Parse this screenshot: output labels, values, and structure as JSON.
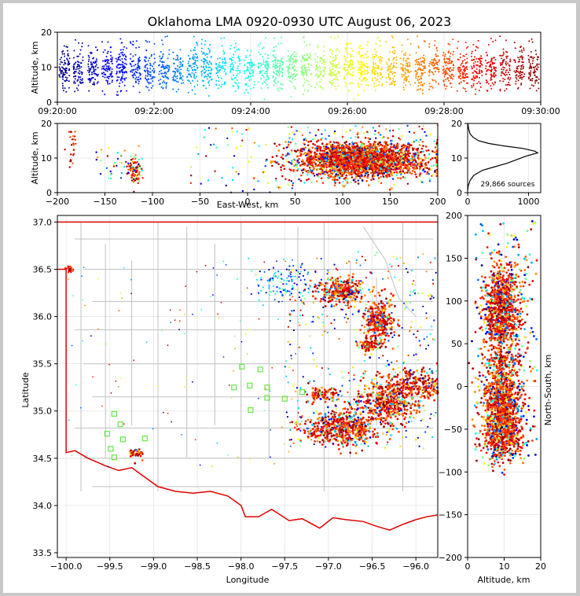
{
  "chart_data": [
    {
      "id": "time_height",
      "type": "scatter",
      "title": "Oklahoma LMA 0920-0930 UTC August 06, 2023",
      "xlabel": "",
      "ylabel": "Altitude, km",
      "xlim": [
        "09:20:00",
        "09:30:00"
      ],
      "ylim": [
        0,
        20
      ],
      "xticks": [
        "09:20:00",
        "09:22:00",
        "09:24:00",
        "09:26:00",
        "09:28:00",
        "09:30:00"
      ],
      "yticks": [
        "0",
        "10",
        "20"
      ],
      "color_mapping": "jet colormap by time 09:20:00 (blue) to 09:30:00 (dark red)",
      "altitude_band_km": [
        2,
        19
      ],
      "core_altitude_km": [
        5,
        14
      ]
    },
    {
      "id": "eastwest_altitude",
      "type": "scatter",
      "xlabel": "East-West, km",
      "ylabel": "Altitude, km",
      "xlim": [
        -200,
        200
      ],
      "ylim": [
        0,
        20
      ],
      "xticks": [
        "−200",
        "−150",
        "−100",
        "−50",
        "0",
        "50",
        "100",
        "150",
        "200"
      ],
      "yticks": [
        "0",
        "10",
        "20"
      ],
      "clusters": [
        {
          "x_range_km": [
            -190,
            -180
          ],
          "altitude_km": [
            5,
            19
          ]
        },
        {
          "x_range_km": [
            -125,
            -110
          ],
          "altitude_km": [
            3,
            12
          ]
        },
        {
          "x_range_km": [
            70,
            200
          ],
          "altitude_km": [
            4,
            19
          ],
          "core_x_km": [
            80,
            160
          ],
          "core_altitude_km": [
            6,
            14
          ]
        }
      ]
    },
    {
      "id": "altitude_histogram",
      "type": "line",
      "xlim": [
        0,
        1200
      ],
      "ylim": [
        0,
        20
      ],
      "xticks": [
        "0",
        "1000"
      ],
      "yticks": [
        "0",
        "10",
        "20"
      ],
      "annotation": "29,866 sources",
      "x": [
        0,
        10,
        40,
        100,
        250,
        450,
        650,
        800,
        950,
        1050,
        1150,
        1100,
        900,
        600,
        350,
        180,
        90,
        40,
        15,
        5
      ],
      "y": [
        0.5,
        2,
        3.5,
        5,
        6.5,
        7.5,
        8.5,
        9.5,
        10.5,
        11,
        11.5,
        12,
        12.8,
        13.5,
        14.2,
        15,
        16,
        17,
        18.5,
        20
      ]
    },
    {
      "id": "plan_view",
      "type": "scatter",
      "xlabel": "Longitude",
      "ylabel": "Latitude",
      "xlim": [
        -100.1,
        -95.75
      ],
      "ylim": [
        33.45,
        37.07
      ],
      "xticks": [
        "−100.0",
        "−99.5",
        "−99.0",
        "−98.5",
        "−98.0",
        "−97.5",
        "−97.0",
        "−96.5",
        "−96.0"
      ],
      "yticks": [
        "33.5",
        "34.0",
        "34.5",
        "35.0",
        "35.5",
        "36.0",
        "36.5",
        "37.0"
      ],
      "station_marker": "green open square",
      "stations": [
        [
          -99.45,
          34.97
        ],
        [
          -99.38,
          34.86
        ],
        [
          -99.53,
          34.76
        ],
        [
          -99.35,
          34.7
        ],
        [
          -99.49,
          34.6
        ],
        [
          -99.45,
          34.51
        ],
        [
          -99.1,
          34.71
        ],
        [
          -97.99,
          35.47
        ],
        [
          -97.78,
          35.44
        ],
        [
          -98.08,
          35.25
        ],
        [
          -97.9,
          35.27
        ],
        [
          -97.89,
          35.01
        ],
        [
          -97.7,
          35.14
        ],
        [
          -97.5,
          35.13
        ],
        [
          -97.7,
          35.25
        ],
        [
          -97.3,
          35.2
        ]
      ],
      "storm_clusters": [
        {
          "lon": -96.85,
          "lat": 36.27
        },
        {
          "lon": -96.4,
          "lat": 35.92
        },
        {
          "lon": -96.5,
          "lat": 35.7
        },
        {
          "lon": -96.85,
          "lat": 34.8
        },
        {
          "lon": -96.35,
          "lat": 35.05
        },
        {
          "lon": -96.05,
          "lat": 35.25
        },
        {
          "lon": -97.05,
          "lat": 35.18
        },
        {
          "lon": -99.2,
          "lat": 34.55
        },
        {
          "lon": -97.45,
          "lat": 36.35
        }
      ]
    },
    {
      "id": "altitude_northsouth",
      "type": "scatter",
      "xlabel": "Altitude, km",
      "ylabel": "North-South, km",
      "xlim": [
        0,
        20
      ],
      "ylim": [
        -200,
        200
      ],
      "xticks": [
        "0",
        "10",
        "20"
      ],
      "yticks": [
        "−200",
        "−150",
        "−100",
        "−50",
        "0",
        "50",
        "100",
        "150",
        "200"
      ],
      "ns_range_km": [
        -100,
        195
      ]
    }
  ]
}
